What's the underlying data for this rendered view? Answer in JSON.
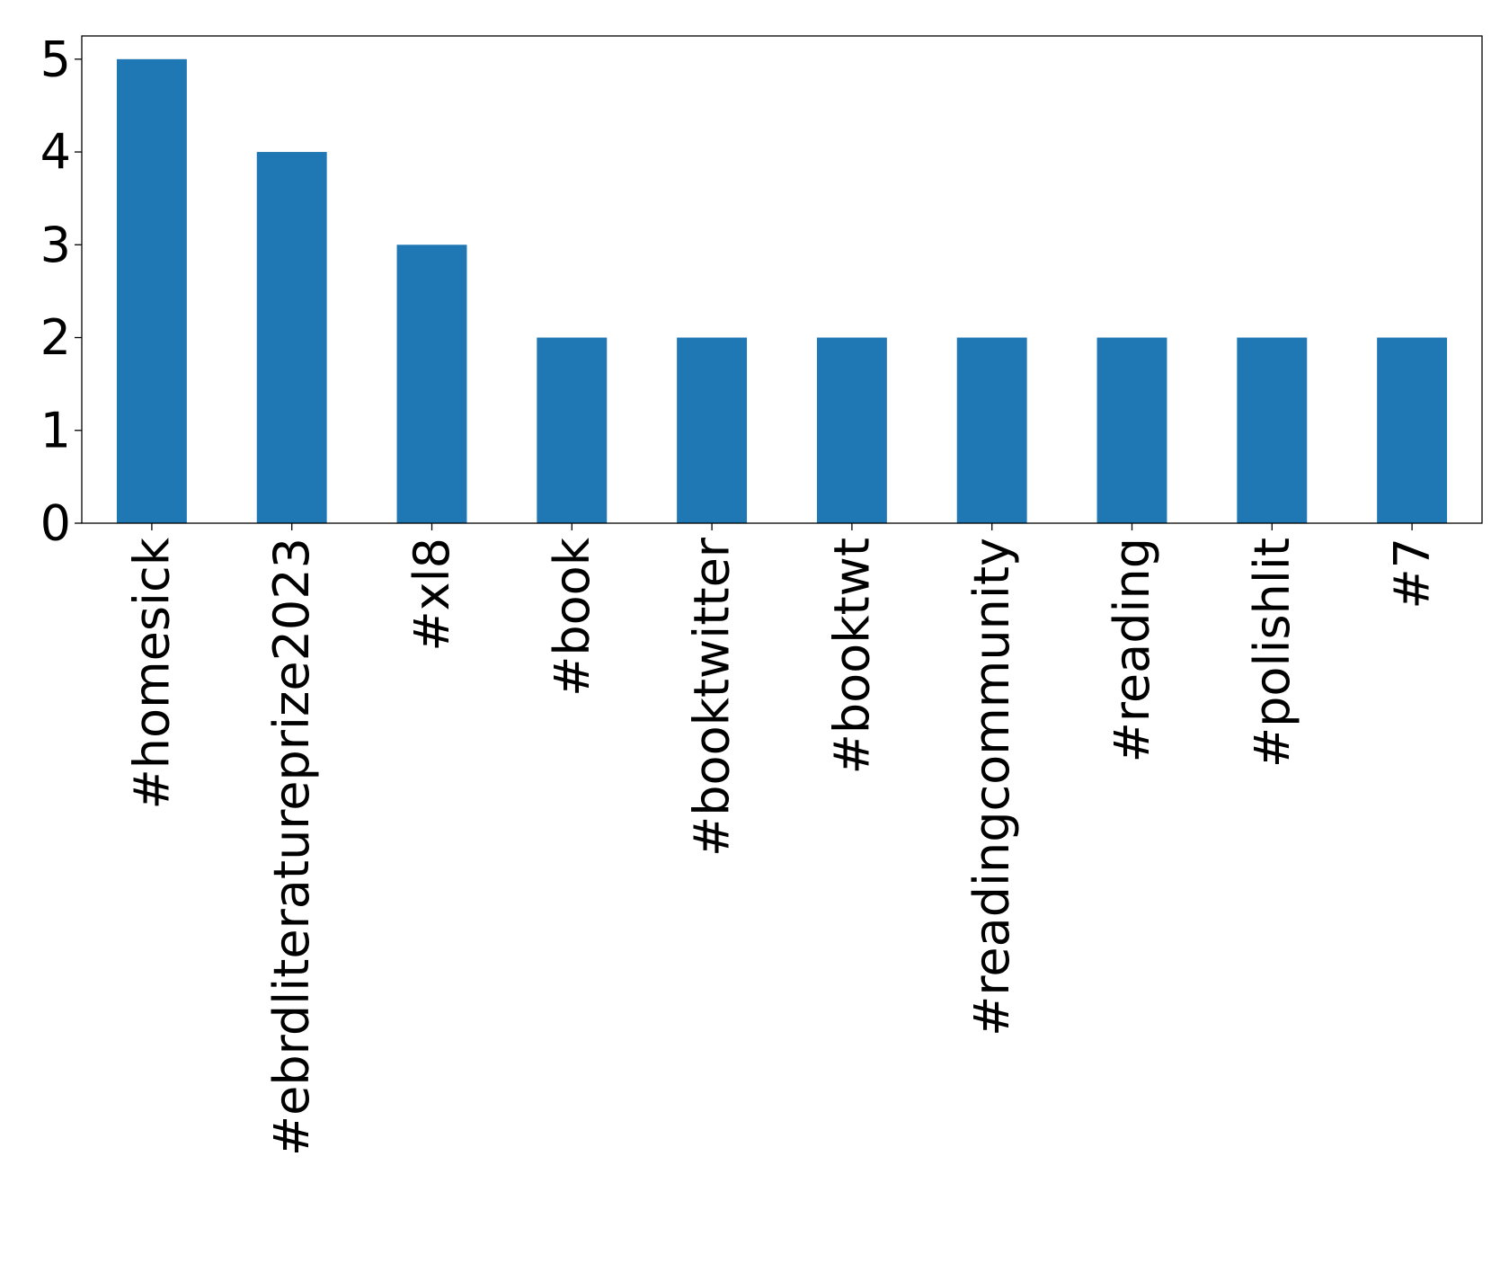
{
  "chart_data": {
    "type": "bar",
    "categories": [
      "#homesick",
      "#ebrdliteratureprize2023",
      "#xl8",
      "#book",
      "#booktwitter",
      "#booktwt",
      "#readingcommunity",
      "#reading",
      "#polishlit",
      "#7"
    ],
    "values": [
      5,
      4,
      3,
      2,
      2,
      2,
      2,
      2,
      2,
      2
    ],
    "yticks": [
      "0",
      "1",
      "2",
      "3",
      "4",
      "5"
    ],
    "ylim": [
      0,
      5.25
    ],
    "grid": false,
    "legend": "none",
    "bar_color": "#1f77b4"
  }
}
